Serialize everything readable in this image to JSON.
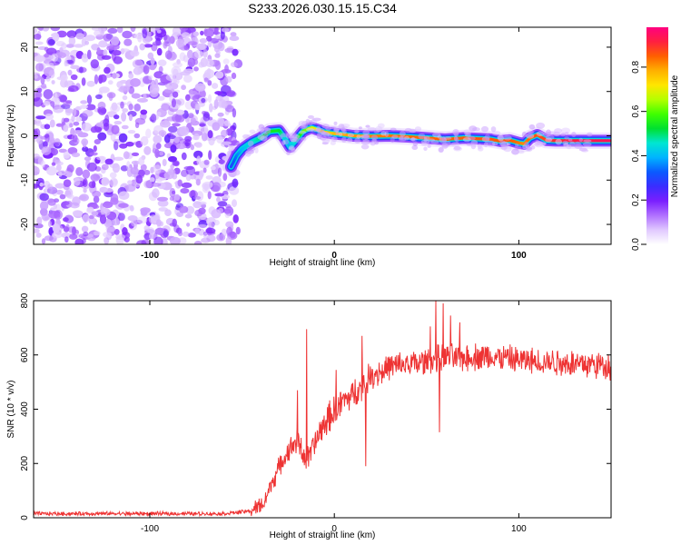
{
  "title": "S233.2026.030.15.15.C34",
  "chart_data": [
    {
      "type": "heatmap",
      "xlabel": "Height of straight line (km)",
      "ylabel": "Frequency (Hz)",
      "xlim": [
        -163,
        150
      ],
      "ylim": [
        -24.5,
        24.5
      ],
      "x_ticks": [
        -100,
        0,
        100
      ],
      "y_ticks": [
        -20,
        -10,
        0,
        10,
        20
      ],
      "noise_region": {
        "x_min": -163,
        "x_max": -55
      },
      "ridge": {
        "x": [
          -56,
          -53,
          -50,
          -45,
          -40,
          -35,
          -30,
          -27,
          -24,
          -22,
          -20,
          -17,
          -14,
          -12,
          -10,
          -5,
          0,
          5,
          10,
          20,
          30,
          40,
          50,
          60,
          70,
          80,
          85,
          90,
          95,
          100,
          103,
          106,
          110,
          115,
          120,
          130,
          140,
          150
        ],
        "y": [
          -7,
          -4.5,
          -3,
          -1.5,
          -0.5,
          1,
          1.2,
          -0.5,
          -2.5,
          -1.5,
          -0.5,
          1,
          1.6,
          1.8,
          1.5,
          0.8,
          0.5,
          0.3,
          0,
          -0.1,
          0,
          -0.2,
          -0.5,
          -0.8,
          -0.5,
          -0.7,
          -0.8,
          -1.2,
          -1.0,
          -1.6,
          -1.8,
          -0.5,
          0.2,
          -1,
          -1.1,
          -1.1,
          -1.1,
          -1.1
        ],
        "amplitude": [
          0.3,
          0.35,
          0.4,
          0.45,
          0.5,
          0.55,
          0.55,
          0.45,
          0.4,
          0.45,
          0.5,
          0.6,
          0.65,
          0.7,
          0.72,
          0.75,
          0.78,
          0.8,
          0.82,
          0.84,
          0.85,
          0.86,
          0.86,
          0.87,
          0.87,
          0.88,
          0.88,
          0.87,
          0.88,
          0.85,
          0.83,
          0.86,
          0.88,
          0.9,
          0.92,
          0.94,
          0.95,
          0.96
        ]
      },
      "colorbar": {
        "label": "Normalized spectral amplitude",
        "range": [
          0,
          0.98
        ],
        "ticks": [
          "0.0",
          "0.2",
          "0.4",
          "0.6",
          "0.8"
        ],
        "tick_values": [
          0,
          0.2,
          0.4,
          0.6,
          0.8
        ],
        "colors": [
          "#ffffff",
          "#e0c8ff",
          "#b070ff",
          "#7a1fff",
          "#3a2dff",
          "#0a5aff",
          "#00b4ff",
          "#00e6d2",
          "#00e030",
          "#40ff00",
          "#b4ff00",
          "#ffe600",
          "#ffb000",
          "#ff6000",
          "#ff2040",
          "#ff0080"
        ]
      }
    },
    {
      "type": "line",
      "xlabel": "Height of straight line (km)",
      "ylabel": "SNR (10 * v/v)",
      "xlim": [
        -163,
        150
      ],
      "ylim": [
        0,
        800
      ],
      "x_ticks": [
        -100,
        0,
        100
      ],
      "y_ticks": [
        0,
        200,
        400,
        600,
        800
      ],
      "color": "#ee3333",
      "trend": {
        "x": [
          -163,
          -60,
          -45,
          -38,
          -35,
          -30,
          -25,
          -20,
          -15,
          -10,
          -5,
          0,
          5,
          10,
          20,
          30,
          40,
          50,
          60,
          70,
          80,
          90,
          100,
          110,
          120,
          130,
          140,
          150
        ],
        "y": [
          15,
          15,
          25,
          55,
          110,
          185,
          245,
          285,
          210,
          280,
          350,
          395,
          430,
          455,
          525,
          555,
          565,
          575,
          590,
          590,
          595,
          590,
          580,
          575,
          575,
          570,
          565,
          560
        ]
      },
      "spikes": [
        {
          "x": -15,
          "y": 695
        },
        {
          "x": -20,
          "y": 470
        },
        {
          "x": 1,
          "y": 545
        },
        {
          "x": 15,
          "y": 670
        },
        {
          "x": 17,
          "y": 190
        },
        {
          "x": 52,
          "y": 705
        },
        {
          "x": 55,
          "y": 800
        },
        {
          "x": 57,
          "y": 315
        },
        {
          "x": 59,
          "y": 790
        },
        {
          "x": 63,
          "y": 745
        },
        {
          "x": 68,
          "y": 720
        }
      ]
    }
  ]
}
